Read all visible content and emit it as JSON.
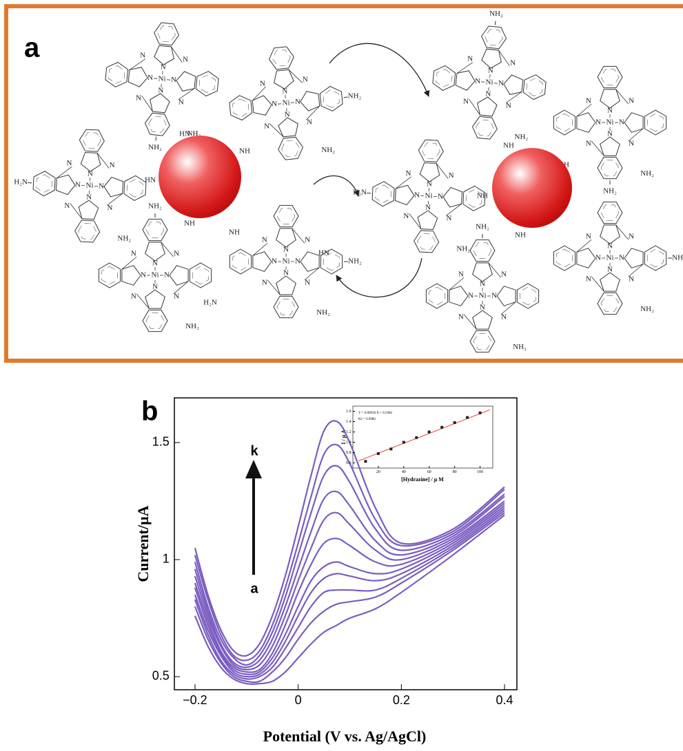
{
  "diagram": {
    "label": "a",
    "metal": "Ni",
    "nitrogen": "N",
    "amine": "NH₂",
    "amine_left": "H₂N",
    "imine": "NH",
    "imine_left": "HN"
  },
  "chart_data": [
    {
      "type": "line",
      "panel_label": "b",
      "xlabel": "Potential (V vs. Ag/AgCl)",
      "ylabel": "Current/µA",
      "annotations": [
        "k",
        "a"
      ],
      "xlim": [
        -0.24,
        0.424
      ],
      "ylim": [
        0.444,
        1.691
      ],
      "xticks": [
        {
          "value": -0.2,
          "label": "−0.2"
        },
        0,
        0.2,
        0.4
      ],
      "yticks": [
        0.5,
        1,
        1.5
      ],
      "x": [
        -0.2,
        -0.175,
        -0.15,
        -0.125,
        -0.1,
        -0.075,
        -0.05,
        -0.025,
        0,
        0.025,
        0.05,
        0.075,
        0.1,
        0.15,
        0.2,
        0.3,
        0.4
      ],
      "series": [
        {
          "color": "#7a5cc0",
          "values": [
            0.76,
            0.63,
            0.54,
            0.49,
            0.47,
            0.47,
            0.48,
            0.52,
            0.58,
            0.64,
            0.69,
            0.72,
            0.75,
            0.79,
            0.86,
            1.02,
            1.19
          ]
        },
        {
          "color": "#7a5cc0",
          "values": [
            0.8,
            0.66,
            0.56,
            0.5,
            0.48,
            0.48,
            0.52,
            0.58,
            0.66,
            0.73,
            0.78,
            0.81,
            0.82,
            0.84,
            0.9,
            1.04,
            1.2
          ]
        },
        {
          "color": "#7a5cc0",
          "values": [
            0.83,
            0.68,
            0.57,
            0.51,
            0.49,
            0.5,
            0.54,
            0.62,
            0.71,
            0.8,
            0.86,
            0.87,
            0.87,
            0.87,
            0.92,
            1.05,
            1.21
          ]
        },
        {
          "color": "#7a5cc0",
          "values": [
            0.85,
            0.7,
            0.59,
            0.52,
            0.5,
            0.51,
            0.56,
            0.65,
            0.76,
            0.86,
            0.92,
            0.94,
            0.93,
            0.91,
            0.94,
            1.06,
            1.22
          ]
        },
        {
          "color": "#7a5cc0",
          "values": [
            0.88,
            0.72,
            0.6,
            0.53,
            0.51,
            0.52,
            0.58,
            0.68,
            0.8,
            0.91,
            0.97,
            0.99,
            0.97,
            0.94,
            0.96,
            1.07,
            1.23
          ]
        },
        {
          "color": "#7a5cc0",
          "values": [
            0.9,
            0.74,
            0.61,
            0.54,
            0.52,
            0.53,
            0.6,
            0.72,
            0.86,
            0.98,
            1.07,
            1.09,
            1.06,
            0.99,
            0.98,
            1.08,
            1.24
          ]
        },
        {
          "color": "#7a5cc0",
          "values": [
            0.93,
            0.76,
            0.63,
            0.55,
            0.53,
            0.55,
            0.63,
            0.76,
            0.91,
            1.05,
            1.17,
            1.2,
            1.15,
            1.04,
            1.0,
            1.09,
            1.25
          ]
        },
        {
          "color": "#7a5cc0",
          "values": [
            0.96,
            0.78,
            0.64,
            0.56,
            0.54,
            0.57,
            0.66,
            0.8,
            0.96,
            1.12,
            1.26,
            1.29,
            1.23,
            1.08,
            1.02,
            1.1,
            1.27
          ]
        },
        {
          "color": "#7a5cc0",
          "values": [
            0.99,
            0.8,
            0.66,
            0.58,
            0.55,
            0.59,
            0.69,
            0.84,
            1.02,
            1.2,
            1.36,
            1.4,
            1.33,
            1.13,
            1.04,
            1.11,
            1.28
          ]
        },
        {
          "color": "#7a5cc0",
          "values": [
            1.02,
            0.83,
            0.68,
            0.59,
            0.57,
            0.61,
            0.72,
            0.88,
            1.07,
            1.27,
            1.45,
            1.49,
            1.41,
            1.17,
            1.06,
            1.12,
            1.3
          ]
        },
        {
          "color": "#7a5cc0",
          "values": [
            1.05,
            0.85,
            0.7,
            0.61,
            0.59,
            0.64,
            0.76,
            0.93,
            1.14,
            1.36,
            1.55,
            1.59,
            1.5,
            1.22,
            1.07,
            1.13,
            1.31
          ]
        }
      ]
    },
    {
      "type": "scatter",
      "xlabel": "[Hydrazine] / µ M",
      "ylabel": "I / µ A",
      "xlim": [
        0,
        110
      ],
      "ylim": [
        0.5,
        1.7
      ],
      "xticks": [
        20,
        40,
        60,
        80,
        100
      ],
      "yticks": [
        0.6,
        0.8,
        {
          "value": 1.0,
          "label": "1.0"
        },
        1.2,
        1.4,
        1.6
      ],
      "x": [
        10,
        20,
        30,
        40,
        50,
        60,
        70,
        80,
        90,
        100
      ],
      "values": [
        0.63,
        0.78,
        0.87,
        1.0,
        1.09,
        1.2,
        1.29,
        1.38,
        1.48,
        1.57
      ],
      "color": "#222222",
      "fit": {
        "label": "Y = 0.00958 X + 0.5966",
        "r2_label": "R2 = 0.9986",
        "slope": 0.00958,
        "intercept": 0.5966,
        "color": "#e03a2a"
      }
    }
  ]
}
